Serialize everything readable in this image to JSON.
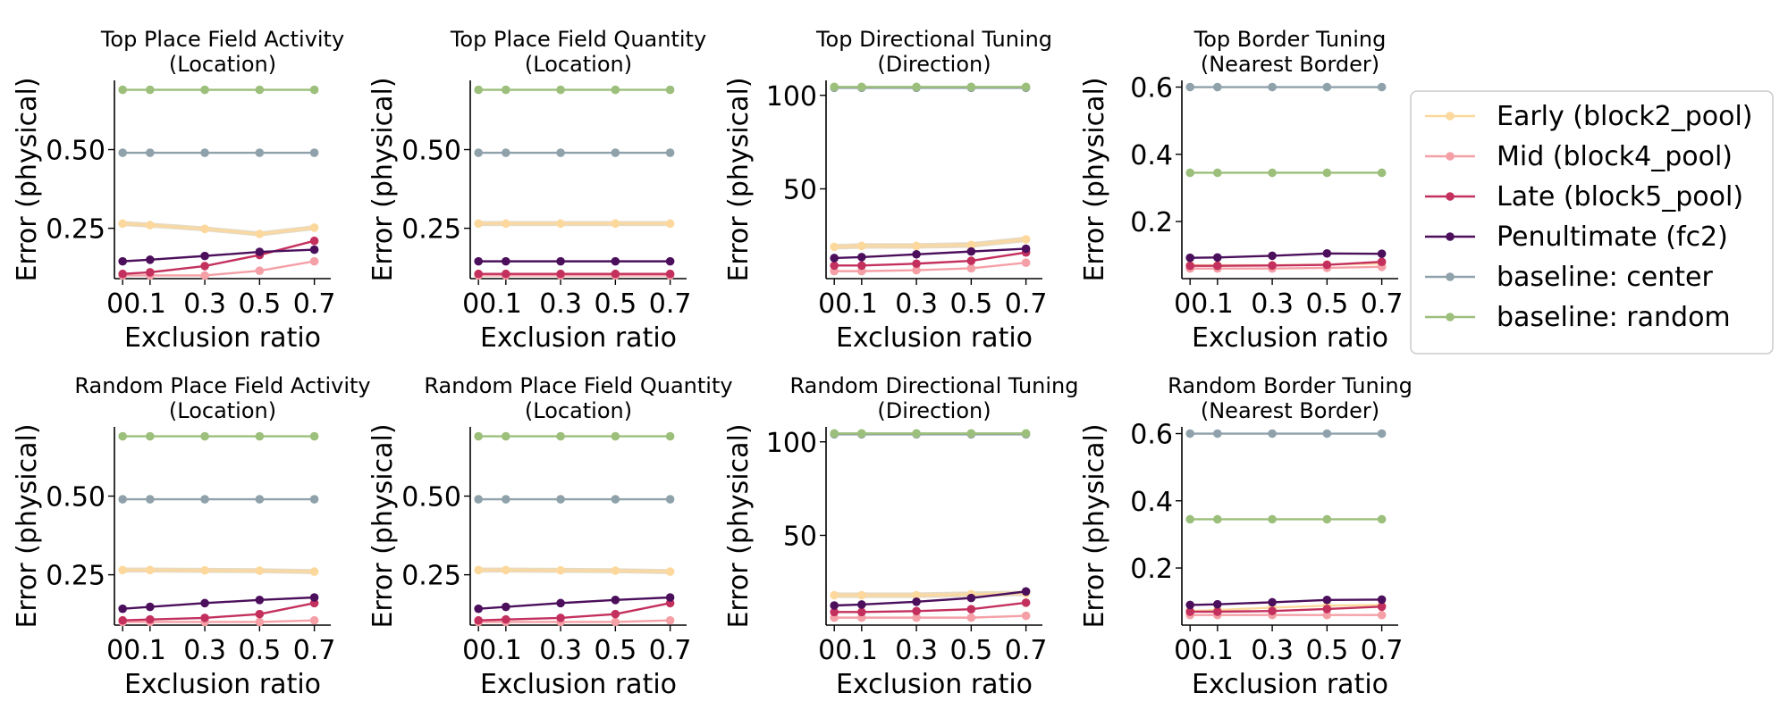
{
  "figure": {
    "legend": {
      "placement": "right of top row",
      "entries": [
        {
          "label": "Early (block2_pool)",
          "color": "#FCD89C"
        },
        {
          "label": "Mid (block4_pool)",
          "color": "#F4A0A6"
        },
        {
          "label": "Late (block5_pool)",
          "color": "#C4305E"
        },
        {
          "label": "Penultimate (fc2)",
          "color": "#4B0F5C"
        },
        {
          "label": "baseline: center",
          "color": "#8FA1AA"
        },
        {
          "label": "baseline: random",
          "color": "#9CBF7B"
        }
      ]
    }
  },
  "chart_data": [
    {
      "type": "line",
      "title": "Top Place Field Activity\n(Location)",
      "xlabel": "Exclusion ratio",
      "ylabel": "Error (physical)",
      "xlim": [
        -0.03,
        0.76
      ],
      "ylim": [
        0.09,
        0.72
      ],
      "x": [
        0,
        0.1,
        0.3,
        0.5,
        0.7
      ],
      "xtick_labels": [
        "00.1",
        "0.3",
        "0.5",
        "0.7"
      ],
      "yticks": [
        0.25,
        0.5
      ],
      "ytick_labels": [
        "0.25",
        "0.50"
      ],
      "series": [
        {
          "name": "Early (block2_pool)",
          "values": [
            0.265,
            0.26,
            0.248,
            0.232,
            0.252
          ],
          "band": 0.008
        },
        {
          "name": "Mid (block4_pool)",
          "values": [
            0.1,
            0.1,
            0.1,
            0.115,
            0.145
          ]
        },
        {
          "name": "Late (block5_pool)",
          "values": [
            0.105,
            0.11,
            0.13,
            0.165,
            0.21
          ]
        },
        {
          "name": "Penultimate (fc2)",
          "values": [
            0.145,
            0.15,
            0.162,
            0.175,
            0.182
          ]
        },
        {
          "name": "baseline: center",
          "values": [
            0.49,
            0.49,
            0.49,
            0.49,
            0.49
          ]
        },
        {
          "name": "baseline: random",
          "values": [
            0.69,
            0.69,
            0.69,
            0.69,
            0.69
          ]
        }
      ]
    },
    {
      "type": "line",
      "title": "Top Place Field Quantity\n(Location)",
      "xlabel": "Exclusion ratio",
      "ylabel": "Error (physical)",
      "xlim": [
        -0.03,
        0.76
      ],
      "ylim": [
        0.09,
        0.72
      ],
      "x": [
        0,
        0.1,
        0.3,
        0.5,
        0.7
      ],
      "xtick_labels": [
        "00.1",
        "0.3",
        "0.5",
        "0.7"
      ],
      "yticks": [
        0.25,
        0.5
      ],
      "ytick_labels": [
        "0.25",
        "0.50"
      ],
      "series": [
        {
          "name": "Early (block2_pool)",
          "values": [
            0.265,
            0.265,
            0.265,
            0.265,
            0.265
          ],
          "band": 0.008
        },
        {
          "name": "Mid (block4_pool)",
          "values": [
            0.1,
            0.1,
            0.1,
            0.1,
            0.1
          ]
        },
        {
          "name": "Late (block5_pool)",
          "values": [
            0.105,
            0.105,
            0.105,
            0.105,
            0.105
          ]
        },
        {
          "name": "Penultimate (fc2)",
          "values": [
            0.145,
            0.145,
            0.145,
            0.145,
            0.145
          ]
        },
        {
          "name": "baseline: center",
          "values": [
            0.49,
            0.49,
            0.49,
            0.49,
            0.49
          ]
        },
        {
          "name": "baseline: random",
          "values": [
            0.69,
            0.69,
            0.69,
            0.69,
            0.69
          ]
        }
      ]
    },
    {
      "type": "line",
      "title": "Top Directional Tuning\n(Direction)",
      "xlabel": "Exclusion ratio",
      "ylabel": "Error (physical)",
      "xlim": [
        -0.03,
        0.76
      ],
      "ylim": [
        2,
        108
      ],
      "x": [
        0,
        0.1,
        0.3,
        0.5,
        0.7
      ],
      "xtick_labels": [
        "00.1",
        "0.3",
        "0.5",
        "0.7"
      ],
      "yticks": [
        50,
        100
      ],
      "ytick_labels": [
        "50",
        "100"
      ],
      "series": [
        {
          "name": "Early (block2_pool)",
          "values": [
            19,
            19.5,
            19.5,
            20,
            23
          ],
          "band": 1.5
        },
        {
          "name": "Mid (block4_pool)",
          "values": [
            6,
            6,
            6.5,
            7.5,
            10.5
          ]
        },
        {
          "name": "Late (block5_pool)",
          "values": [
            9,
            9,
            10,
            11.5,
            16
          ]
        },
        {
          "name": "Penultimate (fc2)",
          "values": [
            13,
            13.5,
            15,
            16.5,
            18
          ]
        },
        {
          "name": "baseline: center",
          "values": [
            104,
            104,
            104,
            104,
            104
          ]
        },
        {
          "name": "baseline: random",
          "values": [
            104.5,
            104.5,
            104.5,
            104.5,
            104.5
          ]
        }
      ]
    },
    {
      "type": "line",
      "title": "Top Border Tuning\n(Nearest Border)",
      "xlabel": "Exclusion ratio",
      "ylabel": "Error (physical)",
      "xlim": [
        -0.03,
        0.76
      ],
      "ylim": [
        0.03,
        0.62
      ],
      "x": [
        0,
        0.1,
        0.3,
        0.5,
        0.7
      ],
      "xtick_labels": [
        "00.1",
        "0.3",
        "0.5",
        "0.7"
      ],
      "yticks": [
        0.2,
        0.4,
        0.6
      ],
      "ytick_labels": [
        "0.2",
        "0.4",
        "0.6"
      ],
      "series": [
        {
          "name": "Early (block2_pool)",
          "values": [
            0.07,
            0.07,
            0.07,
            0.072,
            0.075
          ]
        },
        {
          "name": "Mid (block4_pool)",
          "values": [
            0.06,
            0.06,
            0.06,
            0.062,
            0.065
          ]
        },
        {
          "name": "Late (block5_pool)",
          "values": [
            0.068,
            0.068,
            0.069,
            0.071,
            0.08
          ]
        },
        {
          "name": "Penultimate (fc2)",
          "values": [
            0.092,
            0.093,
            0.098,
            0.105,
            0.104
          ]
        },
        {
          "name": "baseline: center",
          "values": [
            0.6,
            0.6,
            0.6,
            0.6,
            0.6
          ]
        },
        {
          "name": "baseline: random",
          "values": [
            0.345,
            0.345,
            0.345,
            0.345,
            0.345
          ]
        }
      ]
    },
    {
      "type": "line",
      "title": "Random Place Field Activity\n(Location)",
      "xlabel": "Exclusion ratio",
      "ylabel": "Error (physical)",
      "xlim": [
        -0.03,
        0.76
      ],
      "ylim": [
        0.09,
        0.72
      ],
      "x": [
        0,
        0.1,
        0.3,
        0.5,
        0.7
      ],
      "xtick_labels": [
        "00.1",
        "0.3",
        "0.5",
        "0.7"
      ],
      "yticks": [
        0.25,
        0.5
      ],
      "ytick_labels": [
        "0.25",
        "0.50"
      ],
      "series": [
        {
          "name": "Early (block2_pool)",
          "values": [
            0.265,
            0.265,
            0.264,
            0.263,
            0.26
          ],
          "band": 0.008
        },
        {
          "name": "Mid (block4_pool)",
          "values": [
            0.1,
            0.1,
            0.1,
            0.1,
            0.105
          ]
        },
        {
          "name": "Late (block5_pool)",
          "values": [
            0.105,
            0.108,
            0.113,
            0.125,
            0.16
          ]
        },
        {
          "name": "Penultimate (fc2)",
          "values": [
            0.142,
            0.148,
            0.16,
            0.17,
            0.178
          ]
        },
        {
          "name": "baseline: center",
          "values": [
            0.49,
            0.49,
            0.49,
            0.49,
            0.49
          ]
        },
        {
          "name": "baseline: random",
          "values": [
            0.69,
            0.69,
            0.69,
            0.69,
            0.69
          ]
        }
      ]
    },
    {
      "type": "line",
      "title": "Random Place Field Quantity\n(Location)",
      "xlabel": "Exclusion ratio",
      "ylabel": "Error (physical)",
      "xlim": [
        -0.03,
        0.76
      ],
      "ylim": [
        0.09,
        0.72
      ],
      "x": [
        0,
        0.1,
        0.3,
        0.5,
        0.7
      ],
      "xtick_labels": [
        "00.1",
        "0.3",
        "0.5",
        "0.7"
      ],
      "yticks": [
        0.25,
        0.5
      ],
      "ytick_labels": [
        "0.25",
        "0.50"
      ],
      "series": [
        {
          "name": "Early (block2_pool)",
          "values": [
            0.265,
            0.265,
            0.264,
            0.263,
            0.26
          ],
          "band": 0.008
        },
        {
          "name": "Mid (block4_pool)",
          "values": [
            0.1,
            0.1,
            0.1,
            0.1,
            0.105
          ]
        },
        {
          "name": "Late (block5_pool)",
          "values": [
            0.105,
            0.108,
            0.113,
            0.125,
            0.16
          ]
        },
        {
          "name": "Penultimate (fc2)",
          "values": [
            0.142,
            0.148,
            0.16,
            0.17,
            0.178
          ]
        },
        {
          "name": "baseline: center",
          "values": [
            0.49,
            0.49,
            0.49,
            0.49,
            0.49
          ]
        },
        {
          "name": "baseline: random",
          "values": [
            0.69,
            0.69,
            0.69,
            0.69,
            0.69
          ]
        }
      ]
    },
    {
      "type": "line",
      "title": "Random Directional Tuning\n(Direction)",
      "xlabel": "Exclusion ratio",
      "ylabel": "Error (physical)",
      "xlim": [
        -0.03,
        0.76
      ],
      "ylim": [
        2,
        108
      ],
      "x": [
        0,
        0.1,
        0.3,
        0.5,
        0.7
      ],
      "xtick_labels": [
        "00.1",
        "0.3",
        "0.5",
        "0.7"
      ],
      "yticks": [
        50,
        100
      ],
      "ytick_labels": [
        "50",
        "100"
      ],
      "series": [
        {
          "name": "Early (block2_pool)",
          "values": [
            18,
            18,
            18,
            18.5,
            19
          ],
          "band": 1.5
        },
        {
          "name": "Mid (block4_pool)",
          "values": [
            6,
            6,
            6,
            6,
            7
          ]
        },
        {
          "name": "Late (block5_pool)",
          "values": [
            9,
            9,
            9.5,
            10.5,
            14
          ]
        },
        {
          "name": "Penultimate (fc2)",
          "values": [
            12.5,
            13,
            14.5,
            16.5,
            20
          ]
        },
        {
          "name": "baseline: center",
          "values": [
            104,
            104,
            104,
            104,
            104
          ]
        },
        {
          "name": "baseline: random",
          "values": [
            104.5,
            104.5,
            104.5,
            104.5,
            104.5
          ]
        }
      ]
    },
    {
      "type": "line",
      "title": "Random Border Tuning\n(Nearest Border)",
      "xlabel": "Exclusion ratio",
      "ylabel": "Error (physical)",
      "xlim": [
        -0.03,
        0.76
      ],
      "ylim": [
        0.03,
        0.62
      ],
      "x": [
        0,
        0.1,
        0.3,
        0.5,
        0.7
      ],
      "xtick_labels": [
        "00.1",
        "0.3",
        "0.5",
        "0.7"
      ],
      "yticks": [
        0.2,
        0.4,
        0.6
      ],
      "ytick_labels": [
        "0.2",
        "0.4",
        "0.6"
      ],
      "series": [
        {
          "name": "Early (block2_pool)",
          "values": [
            0.072,
            0.075,
            0.082,
            0.088,
            0.09
          ]
        },
        {
          "name": "Mid (block4_pool)",
          "values": [
            0.06,
            0.06,
            0.06,
            0.06,
            0.06
          ]
        },
        {
          "name": "Late (block5_pool)",
          "values": [
            0.07,
            0.07,
            0.072,
            0.078,
            0.085
          ]
        },
        {
          "name": "Penultimate (fc2)",
          "values": [
            0.09,
            0.092,
            0.098,
            0.105,
            0.106
          ]
        },
        {
          "name": "baseline: center",
          "values": [
            0.6,
            0.6,
            0.6,
            0.6,
            0.6
          ]
        },
        {
          "name": "baseline: random",
          "values": [
            0.345,
            0.345,
            0.345,
            0.345,
            0.345
          ]
        }
      ]
    }
  ]
}
